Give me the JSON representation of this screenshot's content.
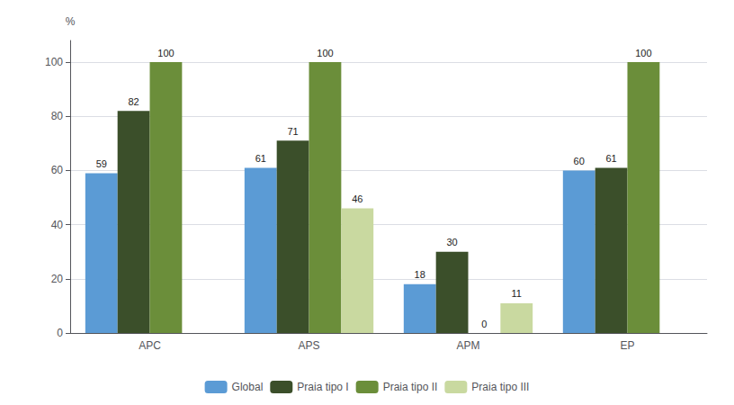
{
  "chart_data": {
    "type": "bar",
    "categories": [
      "APC",
      "APS",
      "APM",
      "EP"
    ],
    "series": [
      {
        "name": "Global",
        "color": "#5B9BD5",
        "values": [
          59,
          61,
          18,
          60
        ]
      },
      {
        "name": "Praia tipo I",
        "color": "#3B4F2A",
        "values": [
          82,
          71,
          30,
          61
        ]
      },
      {
        "name": "Praia tipo II",
        "color": "#6B8E3A",
        "values": [
          100,
          100,
          0,
          100
        ]
      },
      {
        "name": "Praia tipo III",
        "color": "#C9D9A0",
        "values": [
          null,
          46,
          11,
          null
        ]
      }
    ],
    "ylabel": "%",
    "ylim": [
      0,
      108
    ],
    "yticks": [
      0,
      20,
      40,
      60,
      80,
      100
    ],
    "grid": true,
    "legend": "bottom",
    "data_labels": true
  }
}
